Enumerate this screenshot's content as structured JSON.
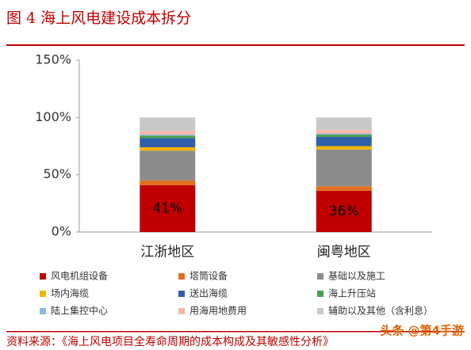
{
  "chart_data": {
    "type": "bar",
    "stacked": true,
    "title": "图 4 海上风电建设成本拆分",
    "categories": [
      "江浙地区",
      "闽粤地区"
    ],
    "series": [
      {
        "name": "风电机组设备",
        "color": "#c00000",
        "values": [
          41,
          36
        ],
        "value_labels": [
          "41%",
          "36%"
        ]
      },
      {
        "name": "塔筒设备",
        "color": "#e07020",
        "values": [
          4,
          4
        ]
      },
      {
        "name": "基础以及施工",
        "color": "#8c8c8c",
        "values": [
          26,
          32
        ]
      },
      {
        "name": "场内海缆",
        "color": "#f0b400",
        "values": [
          3,
          3
        ]
      },
      {
        "name": "送出海缆",
        "color": "#2e5fa8",
        "values": [
          8,
          8
        ]
      },
      {
        "name": "海上升压站",
        "color": "#4ca04c",
        "values": [
          2,
          2
        ]
      },
      {
        "name": "陆上集控中心",
        "color": "#8fb8e0",
        "values": [
          1,
          1
        ]
      },
      {
        "name": "用海用地费用",
        "color": "#f4b8a8",
        "values": [
          3,
          3
        ]
      },
      {
        "name": "辅助以及其他（含利息）",
        "color": "#c8c8c8",
        "values": [
          12,
          11
        ]
      }
    ],
    "ylim": [
      0,
      150
    ],
    "yticks": [
      {
        "value": 0,
        "label": "0%"
      },
      {
        "value": 50,
        "label": "50%"
      },
      {
        "value": 100,
        "label": "100%"
      },
      {
        "value": 150,
        "label": "150%"
      }
    ],
    "source": "资料来源：《海上风电项目全寿命周期的成本构成及其敏感性分析》",
    "watermark": "头条 @第4手游"
  }
}
